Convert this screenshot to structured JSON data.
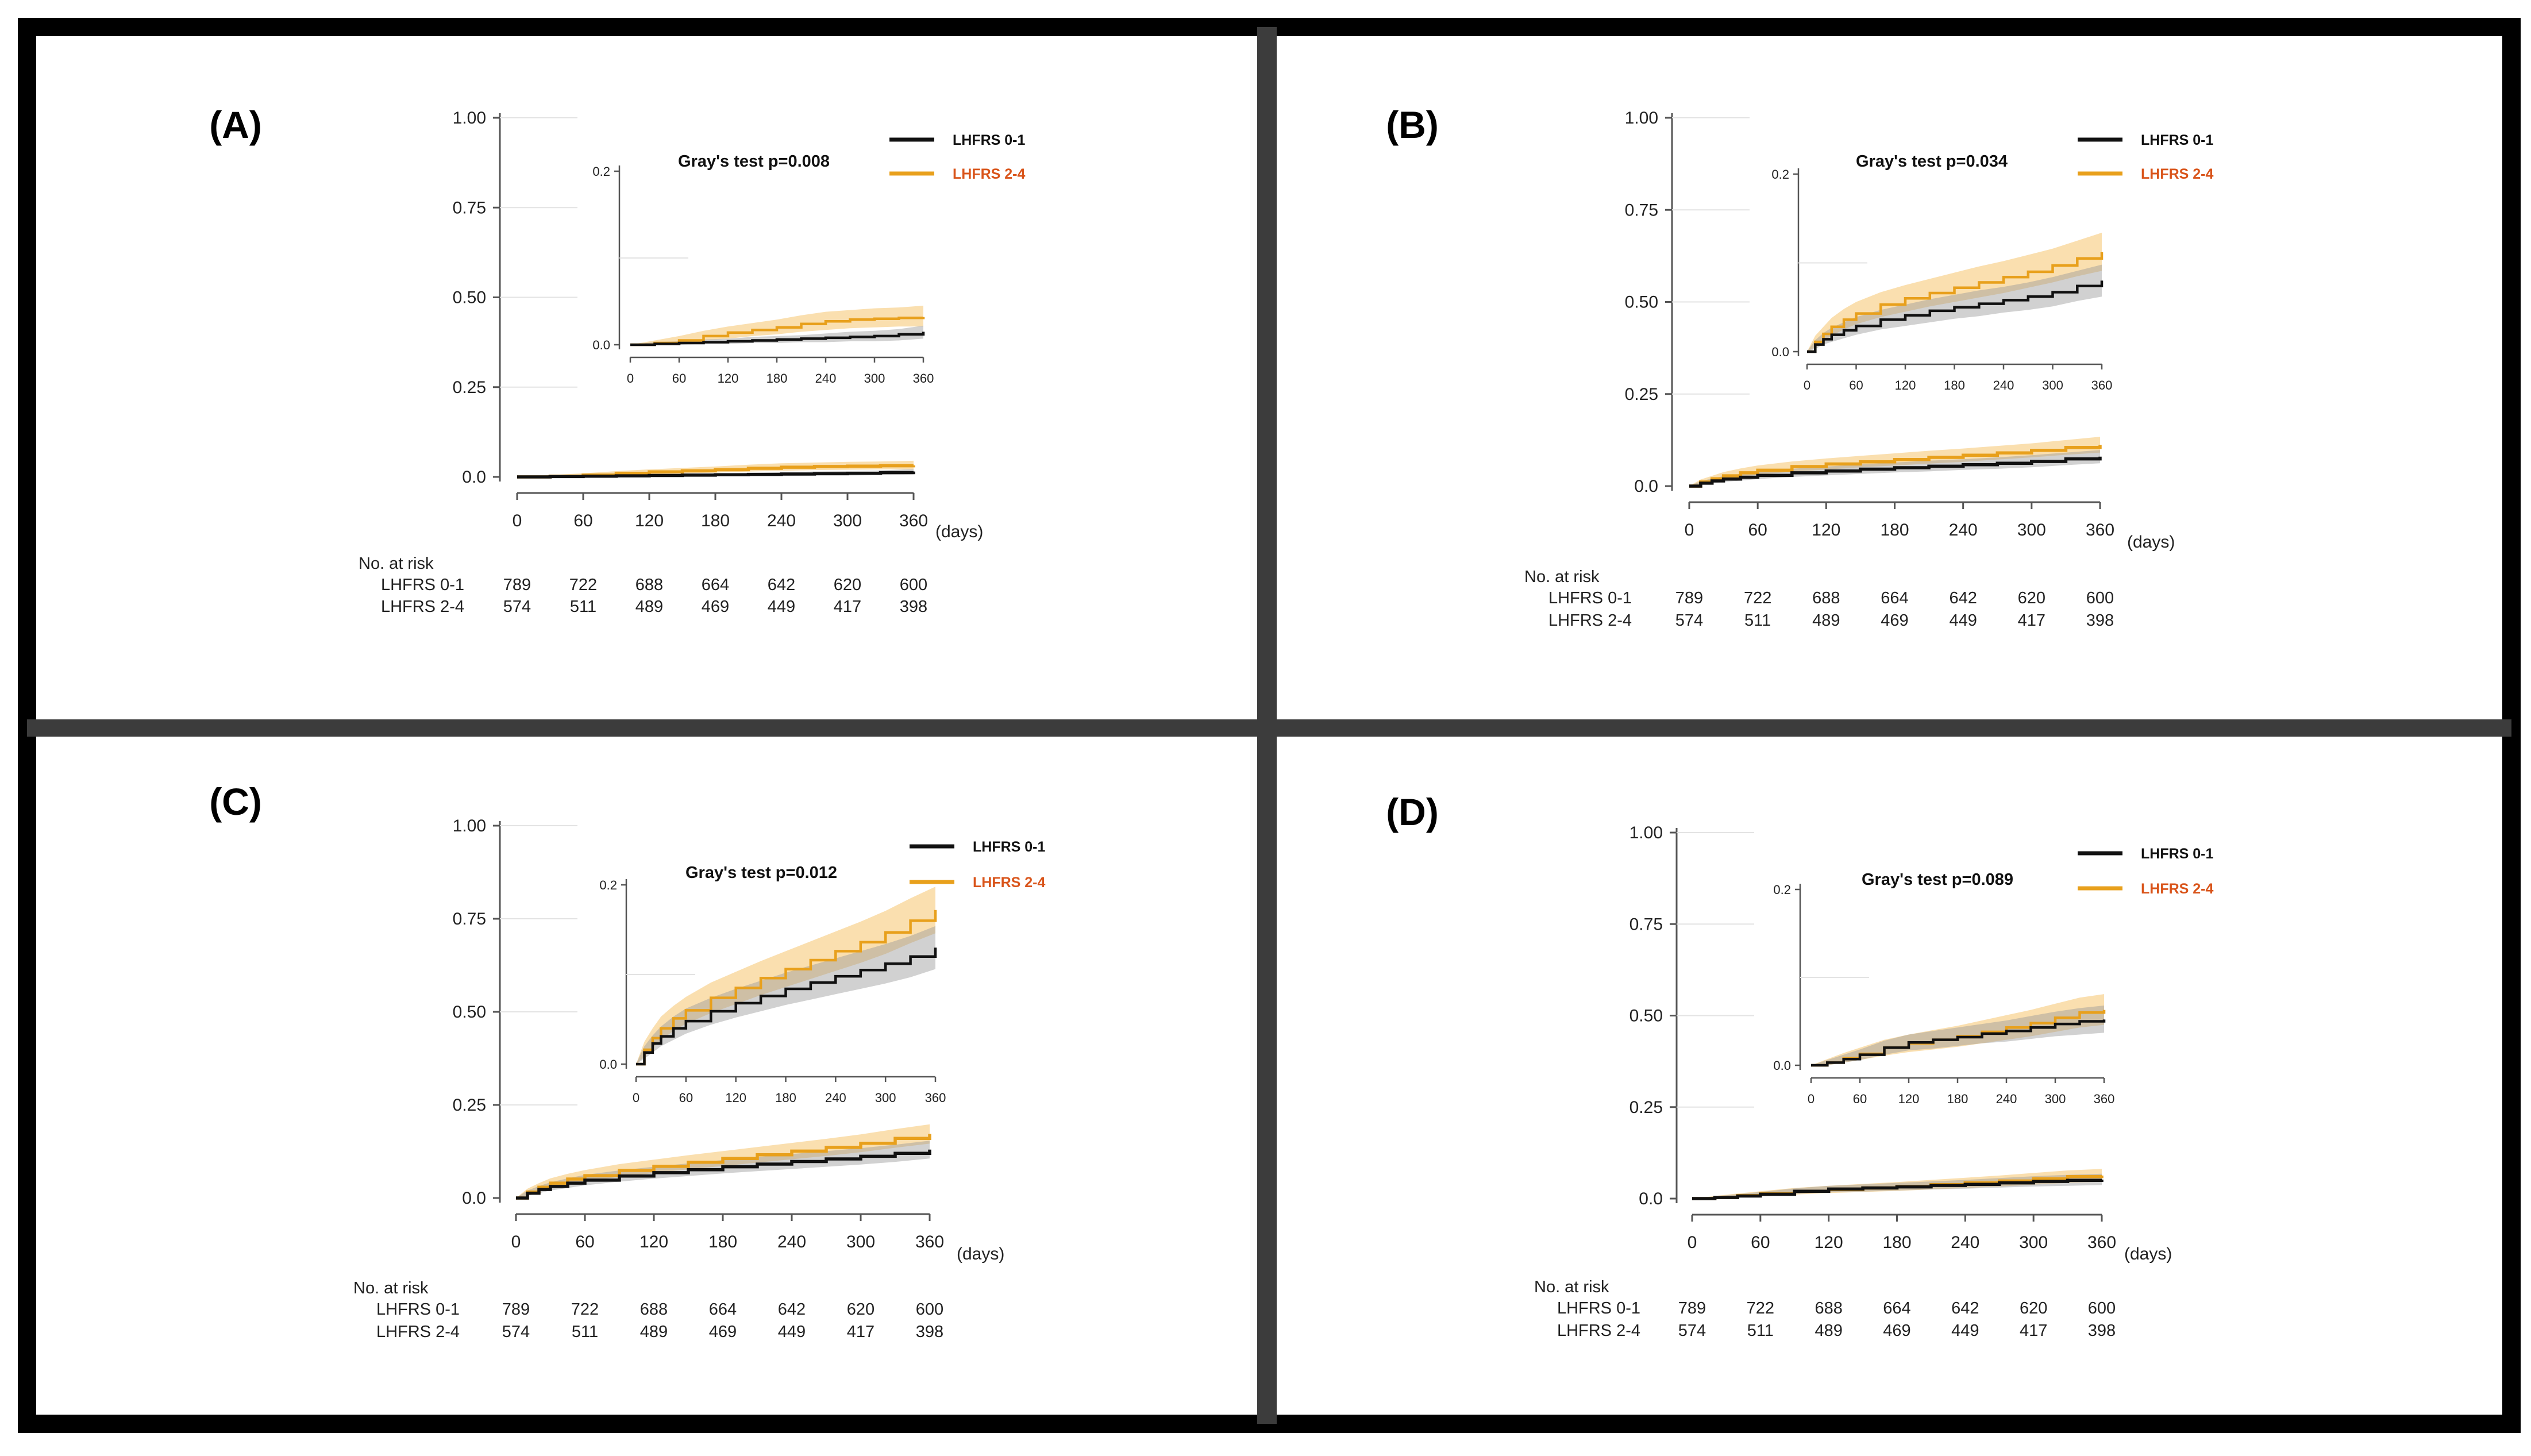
{
  "figure": {
    "colors": {
      "frame": "#000000",
      "divider": "#3c3c3c",
      "series_low": "#111111",
      "series_high": "#e8a01c",
      "legend_high_text": "#d9541a",
      "band_low": "#9a9a9a",
      "band_high": "#f6c46e"
    }
  },
  "chart_data": [
    {
      "panel": "(A)",
      "type": "line",
      "title": "",
      "stat_test": "Gray's test p=0.008",
      "legend": [
        "LHFRS 0-1",
        "LHFRS 2-4"
      ],
      "x_unit": "(days)",
      "x_ticks": [
        "0",
        "60",
        "120",
        "180",
        "240",
        "300",
        "360"
      ],
      "y_ticks": [
        "0.0",
        "0.25",
        "0.50",
        "0.75",
        "1.00"
      ],
      "ylim": [
        0,
        1
      ],
      "xlim": [
        0,
        360
      ],
      "inset": {
        "x_ticks": [
          "0",
          "60",
          "120",
          "180",
          "240",
          "300",
          "360"
        ],
        "y_ticks": [
          "0.0",
          "0.2"
        ],
        "ylim": [
          0,
          0.2
        ]
      },
      "x": [
        0,
        30,
        60,
        90,
        120,
        150,
        180,
        210,
        240,
        270,
        300,
        330,
        360
      ],
      "series": [
        {
          "name": "LHFRS 0-1",
          "values": [
            0,
            0.001,
            0.002,
            0.003,
            0.004,
            0.005,
            0.006,
            0.007,
            0.008,
            0.009,
            0.01,
            0.012,
            0.015
          ],
          "lower": [
            0,
            0,
            0,
            0.001,
            0.001,
            0.002,
            0.002,
            0.003,
            0.003,
            0.004,
            0.004,
            0.005,
            0.007
          ],
          "upper": [
            0,
            0.003,
            0.004,
            0.006,
            0.007,
            0.009,
            0.01,
            0.011,
            0.013,
            0.015,
            0.016,
            0.018,
            0.022
          ]
        },
        {
          "name": "LHFRS 2-4",
          "values": [
            0,
            0.002,
            0.005,
            0.01,
            0.014,
            0.017,
            0.02,
            0.024,
            0.027,
            0.029,
            0.03,
            0.031,
            0.032
          ],
          "lower": [
            0,
            0,
            0.002,
            0.005,
            0.007,
            0.01,
            0.012,
            0.015,
            0.017,
            0.019,
            0.02,
            0.021,
            0.021
          ],
          "upper": [
            0,
            0.005,
            0.01,
            0.016,
            0.021,
            0.025,
            0.029,
            0.034,
            0.038,
            0.04,
            0.042,
            0.043,
            0.045
          ]
        }
      ],
      "risk_table": {
        "title": "No. at risk",
        "rows": [
          {
            "label": "LHFRS 0-1",
            "counts": [
              "789",
              "722",
              "688",
              "664",
              "642",
              "620",
              "600"
            ]
          },
          {
            "label": "LHFRS 2-4",
            "counts": [
              "574",
              "511",
              "489",
              "469",
              "449",
              "417",
              "398"
            ]
          }
        ]
      }
    },
    {
      "panel": "(B)",
      "type": "line",
      "title": "",
      "stat_test": "Gray's test p=0.034",
      "legend": [
        "LHFRS 0-1",
        "LHFRS 2-4"
      ],
      "x_unit": "(days)",
      "x_ticks": [
        "0",
        "60",
        "120",
        "180",
        "240",
        "300",
        "360"
      ],
      "y_ticks": [
        "0.0",
        "0.25",
        "0.50",
        "0.75",
        "1.00"
      ],
      "ylim": [
        0,
        1
      ],
      "xlim": [
        0,
        360
      ],
      "inset": {
        "x_ticks": [
          "0",
          "60",
          "120",
          "180",
          "240",
          "300",
          "360"
        ],
        "y_ticks": [
          "0.0",
          "0.2"
        ],
        "ylim": [
          0,
          0.2
        ]
      },
      "x": [
        0,
        10,
        20,
        30,
        45,
        60,
        90,
        120,
        150,
        180,
        210,
        240,
        270,
        300,
        330,
        360
      ],
      "series": [
        {
          "name": "LHFRS 0-1",
          "values": [
            0,
            0.008,
            0.014,
            0.019,
            0.024,
            0.029,
            0.036,
            0.041,
            0.046,
            0.05,
            0.054,
            0.058,
            0.062,
            0.067,
            0.074,
            0.08
          ],
          "lower": [
            0,
            0.003,
            0.008,
            0.011,
            0.015,
            0.019,
            0.025,
            0.029,
            0.033,
            0.037,
            0.04,
            0.044,
            0.047,
            0.051,
            0.057,
            0.062
          ],
          "upper": [
            0,
            0.013,
            0.021,
            0.027,
            0.033,
            0.039,
            0.047,
            0.053,
            0.059,
            0.064,
            0.069,
            0.073,
            0.078,
            0.084,
            0.091,
            0.098
          ]
        },
        {
          "name": "LHFRS 2-4",
          "values": [
            0,
            0.011,
            0.02,
            0.028,
            0.036,
            0.043,
            0.053,
            0.06,
            0.066,
            0.072,
            0.078,
            0.084,
            0.09,
            0.097,
            0.105,
            0.112
          ],
          "lower": [
            0,
            0.005,
            0.012,
            0.018,
            0.025,
            0.031,
            0.039,
            0.045,
            0.051,
            0.056,
            0.061,
            0.066,
            0.072,
            0.078,
            0.085,
            0.091
          ],
          "upper": [
            0,
            0.018,
            0.028,
            0.038,
            0.048,
            0.056,
            0.067,
            0.075,
            0.082,
            0.089,
            0.096,
            0.102,
            0.109,
            0.116,
            0.125,
            0.134
          ]
        }
      ],
      "risk_table": {
        "title": "No. at risk",
        "rows": [
          {
            "label": "LHFRS 0-1",
            "counts": [
              "789",
              "722",
              "688",
              "664",
              "642",
              "620",
              "600"
            ]
          },
          {
            "label": "LHFRS 2-4",
            "counts": [
              "574",
              "511",
              "489",
              "469",
              "449",
              "417",
              "398"
            ]
          }
        ]
      }
    },
    {
      "panel": "(C)",
      "type": "line",
      "title": "",
      "stat_test": "Gray's test p=0.012",
      "legend": [
        "LHFRS 0-1",
        "LHFRS 2-4"
      ],
      "x_unit": "(days)",
      "x_ticks": [
        "0",
        "60",
        "120",
        "180",
        "240",
        "300",
        "360"
      ],
      "y_ticks": [
        "0.0",
        "0.25",
        "0.50",
        "0.75",
        "1.00"
      ],
      "ylim": [
        0,
        1
      ],
      "xlim": [
        0,
        360
      ],
      "inset": {
        "x_ticks": [
          "0",
          "60",
          "120",
          "180",
          "240",
          "300",
          "360"
        ],
        "y_ticks": [
          "0.0",
          "0.2"
        ],
        "ylim": [
          0,
          0.2
        ]
      },
      "x": [
        0,
        10,
        20,
        30,
        45,
        60,
        90,
        120,
        150,
        180,
        210,
        240,
        270,
        300,
        330,
        360
      ],
      "series": [
        {
          "name": "LHFRS 0-1",
          "values": [
            0,
            0.013,
            0.023,
            0.031,
            0.04,
            0.048,
            0.059,
            0.068,
            0.076,
            0.084,
            0.091,
            0.098,
            0.105,
            0.112,
            0.12,
            0.13
          ],
          "lower": [
            0,
            0.006,
            0.013,
            0.02,
            0.027,
            0.034,
            0.044,
            0.052,
            0.059,
            0.066,
            0.072,
            0.078,
            0.084,
            0.09,
            0.097,
            0.106
          ],
          "upper": [
            0,
            0.02,
            0.032,
            0.042,
            0.053,
            0.062,
            0.074,
            0.084,
            0.093,
            0.102,
            0.11,
            0.118,
            0.126,
            0.134,
            0.143,
            0.154
          ]
        },
        {
          "name": "LHFRS 2-4",
          "values": [
            0,
            0.016,
            0.029,
            0.04,
            0.051,
            0.06,
            0.074,
            0.085,
            0.096,
            0.106,
            0.116,
            0.126,
            0.136,
            0.147,
            0.16,
            0.172
          ],
          "lower": [
            0,
            0.008,
            0.018,
            0.027,
            0.037,
            0.045,
            0.057,
            0.067,
            0.077,
            0.086,
            0.095,
            0.104,
            0.113,
            0.123,
            0.135,
            0.146
          ],
          "upper": [
            0,
            0.025,
            0.04,
            0.053,
            0.065,
            0.075,
            0.091,
            0.103,
            0.115,
            0.126,
            0.137,
            0.148,
            0.159,
            0.171,
            0.185,
            0.198
          ]
        }
      ],
      "risk_table": {
        "title": "No. at risk",
        "rows": [
          {
            "label": "LHFRS 0-1",
            "counts": [
              "789",
              "722",
              "688",
              "664",
              "642",
              "620",
              "600"
            ]
          },
          {
            "label": "LHFRS 2-4",
            "counts": [
              "574",
              "511",
              "489",
              "469",
              "449",
              "417",
              "398"
            ]
          }
        ]
      }
    },
    {
      "panel": "(D)",
      "type": "line",
      "title": "",
      "stat_test": "Gray's test p=0.089",
      "legend": [
        "LHFRS 0-1",
        "LHFRS 2-4"
      ],
      "x_unit": "(days)",
      "x_ticks": [
        "0",
        "60",
        "120",
        "180",
        "240",
        "300",
        "360"
      ],
      "y_ticks": [
        "0.0",
        "0.25",
        "0.50",
        "0.75",
        "1.00"
      ],
      "ylim": [
        0,
        1
      ],
      "xlim": [
        0,
        360
      ],
      "inset": {
        "x_ticks": [
          "0",
          "60",
          "120",
          "180",
          "240",
          "300",
          "360"
        ],
        "y_ticks": [
          "0.0",
          "0.2"
        ],
        "ylim": [
          0,
          0.2
        ]
      },
      "x": [
        0,
        20,
        40,
        60,
        90,
        120,
        150,
        180,
        210,
        240,
        270,
        300,
        330,
        360
      ],
      "series": [
        {
          "name": "LHFRS 0-1",
          "values": [
            0,
            0.003,
            0.007,
            0.012,
            0.02,
            0.026,
            0.029,
            0.032,
            0.036,
            0.039,
            0.043,
            0.047,
            0.05,
            0.052
          ],
          "lower": [
            0,
            0,
            0.003,
            0.006,
            0.012,
            0.017,
            0.019,
            0.022,
            0.025,
            0.027,
            0.03,
            0.033,
            0.035,
            0.037
          ],
          "upper": [
            0,
            0.006,
            0.012,
            0.018,
            0.028,
            0.035,
            0.039,
            0.043,
            0.047,
            0.051,
            0.056,
            0.061,
            0.065,
            0.068
          ]
        },
        {
          "name": "LHFRS 2-4",
          "values": [
            0,
            0.003,
            0.008,
            0.013,
            0.02,
            0.025,
            0.029,
            0.033,
            0.038,
            0.043,
            0.048,
            0.054,
            0.06,
            0.063
          ],
          "lower": [
            0,
            0,
            0.003,
            0.006,
            0.011,
            0.015,
            0.018,
            0.021,
            0.025,
            0.029,
            0.033,
            0.038,
            0.043,
            0.046
          ],
          "upper": [
            0,
            0.007,
            0.014,
            0.02,
            0.029,
            0.035,
            0.04,
            0.045,
            0.051,
            0.057,
            0.063,
            0.07,
            0.077,
            0.081
          ]
        }
      ],
      "risk_table": {
        "title": "No. at risk",
        "rows": [
          {
            "label": "LHFRS 0-1",
            "counts": [
              "789",
              "722",
              "688",
              "664",
              "642",
              "620",
              "600"
            ]
          },
          {
            "label": "LHFRS 2-4",
            "counts": [
              "574",
              "511",
              "489",
              "469",
              "449",
              "417",
              "398"
            ]
          }
        ]
      }
    }
  ]
}
